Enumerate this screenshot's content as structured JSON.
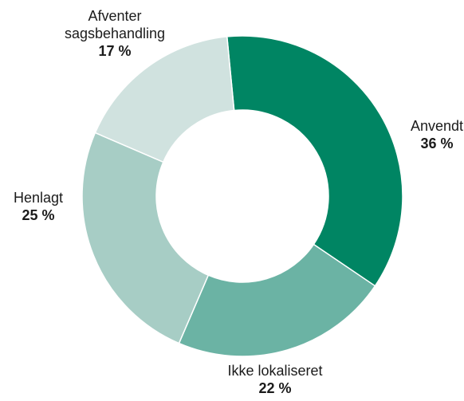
{
  "chart_data": {
    "type": "pie",
    "donut": true,
    "categories": [
      "Anvendt",
      "Ikke lokaliseret",
      "Henlagt",
      "Afventer sagsbehandling"
    ],
    "values": [
      36,
      22,
      25,
      17
    ],
    "value_labels": [
      "36 %",
      "22 %",
      "25 %",
      "17 %"
    ],
    "colors": [
      "#008563",
      "#6bb3a4",
      "#a7cdc5",
      "#d0e2df"
    ],
    "legend": "none",
    "title": ""
  }
}
